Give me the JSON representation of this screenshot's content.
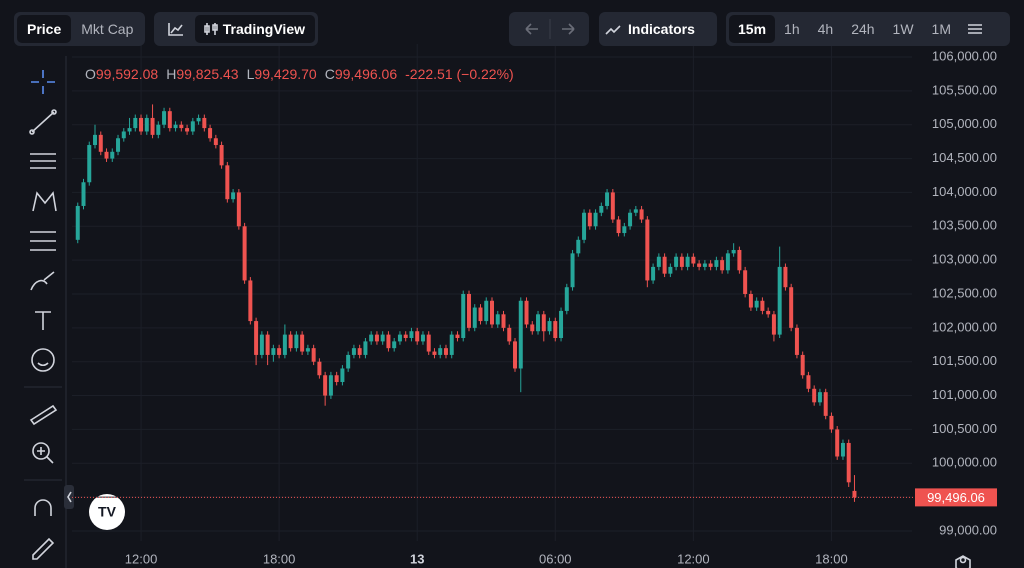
{
  "toolbar": {
    "price": "Price",
    "mkt_cap": "Mkt Cap",
    "tradingview": "TradingView",
    "indicators": "Indicators",
    "intervals": [
      "15m",
      "1h",
      "4h",
      "24h",
      "1W",
      "1M"
    ]
  },
  "legend": {
    "o_label": "O",
    "open": "99,592.08",
    "h_label": "H",
    "high": "99,825.43",
    "l_label": "L",
    "low": "99,429.70",
    "c_label": "C",
    "close": "99,496.06",
    "change": "-222.51 (−0.22%)"
  },
  "price_label": "99,496.06",
  "chart_data": {
    "type": "candlestick",
    "up_color": "#26a69a",
    "down_color": "#ef5350",
    "grid": true,
    "ylim": [
      98852,
      106192
    ],
    "yticks": [
      {
        "value": 99000,
        "label": "99,000.00"
      },
      {
        "value": 99500,
        "label": "99,500.00"
      },
      {
        "value": 100000,
        "label": "100,000.00"
      },
      {
        "value": 100500,
        "label": "100,500.00"
      },
      {
        "value": 101000,
        "label": "101,000.00"
      },
      {
        "value": 101500,
        "label": "101,500.00"
      },
      {
        "value": 102000,
        "label": "102,000.00"
      },
      {
        "value": 102500,
        "label": "102,500.00"
      },
      {
        "value": 103000,
        "label": "103,000.00"
      },
      {
        "value": 103500,
        "label": "103,500.00"
      },
      {
        "value": 104000,
        "label": "104,000.00"
      },
      {
        "value": 104500,
        "label": "104,500.00"
      },
      {
        "value": 105000,
        "label": "105,000.00"
      },
      {
        "value": 105500,
        "label": "105,500.00"
      },
      {
        "value": 106000,
        "label": "106,000.00"
      }
    ],
    "xlim": [
      -1,
      145
    ],
    "xticks": [
      {
        "value": 11,
        "label": "12:00"
      },
      {
        "value": 35,
        "label": "18:00"
      },
      {
        "value": 59,
        "label": "13"
      },
      {
        "value": 83,
        "label": "06:00"
      },
      {
        "value": 107,
        "label": "12:00"
      },
      {
        "value": 131,
        "label": "18:00"
      }
    ],
    "open": [
      103300,
      103800,
      104150,
      104700,
      104850,
      104600,
      104500,
      104600,
      104800,
      104900,
      104950,
      105100,
      104900,
      105100,
      104850,
      105000,
      105200,
      104950,
      105000,
      104950,
      104900,
      105050,
      105100,
      104950,
      104800,
      104700,
      104400,
      103900,
      104000,
      103500,
      102700,
      102100,
      101600,
      101900,
      101600,
      101700,
      101600,
      101900,
      101700,
      101900,
      101650,
      101700,
      101500,
      101300,
      101000,
      101300,
      101200,
      101400,
      101600,
      101700,
      101600,
      101800,
      101900,
      101800,
      101900,
      101700,
      101800,
      101900,
      101850,
      101950,
      101800,
      101900,
      101650,
      101600,
      101700,
      101600,
      101900,
      101850,
      102500,
      102000,
      102300,
      102100,
      102400,
      102050,
      102200,
      102000,
      101800,
      101400,
      102400,
      102050,
      101950,
      102200,
      101950,
      102100,
      101850,
      102250,
      102600,
      103100,
      103300,
      103700,
      103500,
      103700,
      103800,
      104000,
      103600,
      103400,
      103500,
      103700,
      103750,
      103600,
      102700,
      102900,
      103050,
      102800,
      102900,
      103050,
      102900,
      103050,
      102950,
      102900,
      102950,
      102900,
      103000,
      102850,
      103100,
      103150,
      102850,
      102500,
      102300,
      102400,
      102250,
      102200,
      101900,
      102900,
      102600,
      102000,
      101600,
      101300,
      101100,
      100900,
      101050,
      100700,
      100500,
      100100,
      100300,
      99592.08
    ],
    "high": [
      103850,
      104200,
      104750,
      105000,
      104900,
      104650,
      104650,
      104850,
      104950,
      105100,
      105150,
      105150,
      105150,
      105300,
      105050,
      105250,
      105250,
      105050,
      105050,
      105000,
      105100,
      105150,
      105150,
      105000,
      104850,
      104750,
      104450,
      104050,
      104050,
      103550,
      102750,
      102150,
      101950,
      101950,
      101750,
      101750,
      102050,
      101950,
      101950,
      101950,
      101750,
      101750,
      101550,
      101350,
      101350,
      101350,
      101450,
      101650,
      101750,
      101750,
      101850,
      101950,
      101950,
      101950,
      101950,
      101850,
      101950,
      101950,
      102000,
      102000,
      101950,
      101950,
      101700,
      101750,
      101750,
      101950,
      101950,
      102550,
      102550,
      102350,
      102350,
      102450,
      102450,
      102250,
      102250,
      102050,
      101850,
      102450,
      102450,
      102100,
      102250,
      102250,
      102150,
      102150,
      102300,
      102650,
      103150,
      103350,
      103750,
      103750,
      103750,
      103850,
      104050,
      104050,
      103650,
      103550,
      103750,
      103800,
      103800,
      103650,
      102950,
      103100,
      103100,
      102950,
      103100,
      103100,
      103100,
      103100,
      103000,
      103000,
      103000,
      103050,
      103050,
      103150,
      103250,
      103200,
      102900,
      102550,
      102450,
      102450,
      102300,
      102250,
      103200,
      102950,
      102650,
      102050,
      101650,
      101350,
      101150,
      101100,
      101100,
      100750,
      100550,
      100350,
      100350,
      99825.43
    ],
    "low": [
      103250,
      103750,
      104100,
      104650,
      104550,
      104450,
      104450,
      104550,
      104750,
      104850,
      104900,
      104850,
      104850,
      104800,
      104800,
      104950,
      104900,
      104900,
      104900,
      104850,
      104850,
      105000,
      104900,
      104750,
      104650,
      104350,
      103850,
      103850,
      103450,
      102650,
      102050,
      101450,
      101550,
      101450,
      101500,
      101550,
      101550,
      101650,
      101650,
      101600,
      101600,
      101450,
      101250,
      100850,
      100950,
      101150,
      101150,
      101350,
      101550,
      101550,
      101550,
      101750,
      101750,
      101750,
      101650,
      101650,
      101750,
      101800,
      101800,
      101750,
      101750,
      101600,
      101550,
      101550,
      101550,
      101550,
      101800,
      101800,
      101950,
      101950,
      102050,
      102050,
      102000,
      102000,
      101950,
      101750,
      101350,
      101050,
      102000,
      101900,
      101900,
      101800,
      101900,
      101800,
      101800,
      102200,
      102550,
      103050,
      103250,
      103450,
      103450,
      103650,
      103750,
      103550,
      103350,
      103350,
      103450,
      103650,
      103550,
      102600,
      102650,
      102850,
      102750,
      102750,
      102850,
      102850,
      102850,
      102900,
      102850,
      102850,
      102850,
      102850,
      102800,
      102800,
      103050,
      102800,
      102450,
      102250,
      102250,
      102200,
      102150,
      101800,
      101850,
      102550,
      101950,
      101550,
      101250,
      101050,
      100850,
      100850,
      100650,
      100450,
      100050,
      100050,
      99650,
      99429.7
    ],
    "close": [
      103800,
      104150,
      104700,
      104850,
      104600,
      104500,
      104600,
      104800,
      104900,
      104950,
      105100,
      104900,
      105100,
      104850,
      105000,
      105200,
      104950,
      105000,
      104950,
      104900,
      105050,
      105100,
      104950,
      104800,
      104700,
      104400,
      103900,
      104000,
      103500,
      102700,
      102100,
      101600,
      101900,
      101600,
      101700,
      101600,
      101900,
      101700,
      101900,
      101650,
      101700,
      101500,
      101300,
      101000,
      101300,
      101200,
      101400,
      101600,
      101700,
      101600,
      101800,
      101900,
      101800,
      101900,
      101700,
      101800,
      101900,
      101850,
      101950,
      101800,
      101900,
      101650,
      101600,
      101700,
      101600,
      101900,
      101850,
      102500,
      102000,
      102300,
      102100,
      102400,
      102050,
      102200,
      102000,
      101800,
      101400,
      102400,
      102050,
      101950,
      102200,
      101950,
      102100,
      101850,
      102250,
      102600,
      103100,
      103300,
      103700,
      103500,
      103700,
      103800,
      104000,
      103600,
      103400,
      103500,
      103700,
      103750,
      103600,
      102700,
      102900,
      103050,
      102800,
      102900,
      103050,
      102900,
      103050,
      102950,
      102900,
      102950,
      102900,
      103000,
      102850,
      103100,
      103150,
      102850,
      102500,
      102300,
      102400,
      102250,
      102200,
      101900,
      102900,
      102600,
      102000,
      101600,
      101300,
      101100,
      100900,
      101050,
      100700,
      100500,
      100100,
      100300,
      99718.57,
      99496.06
    ]
  }
}
